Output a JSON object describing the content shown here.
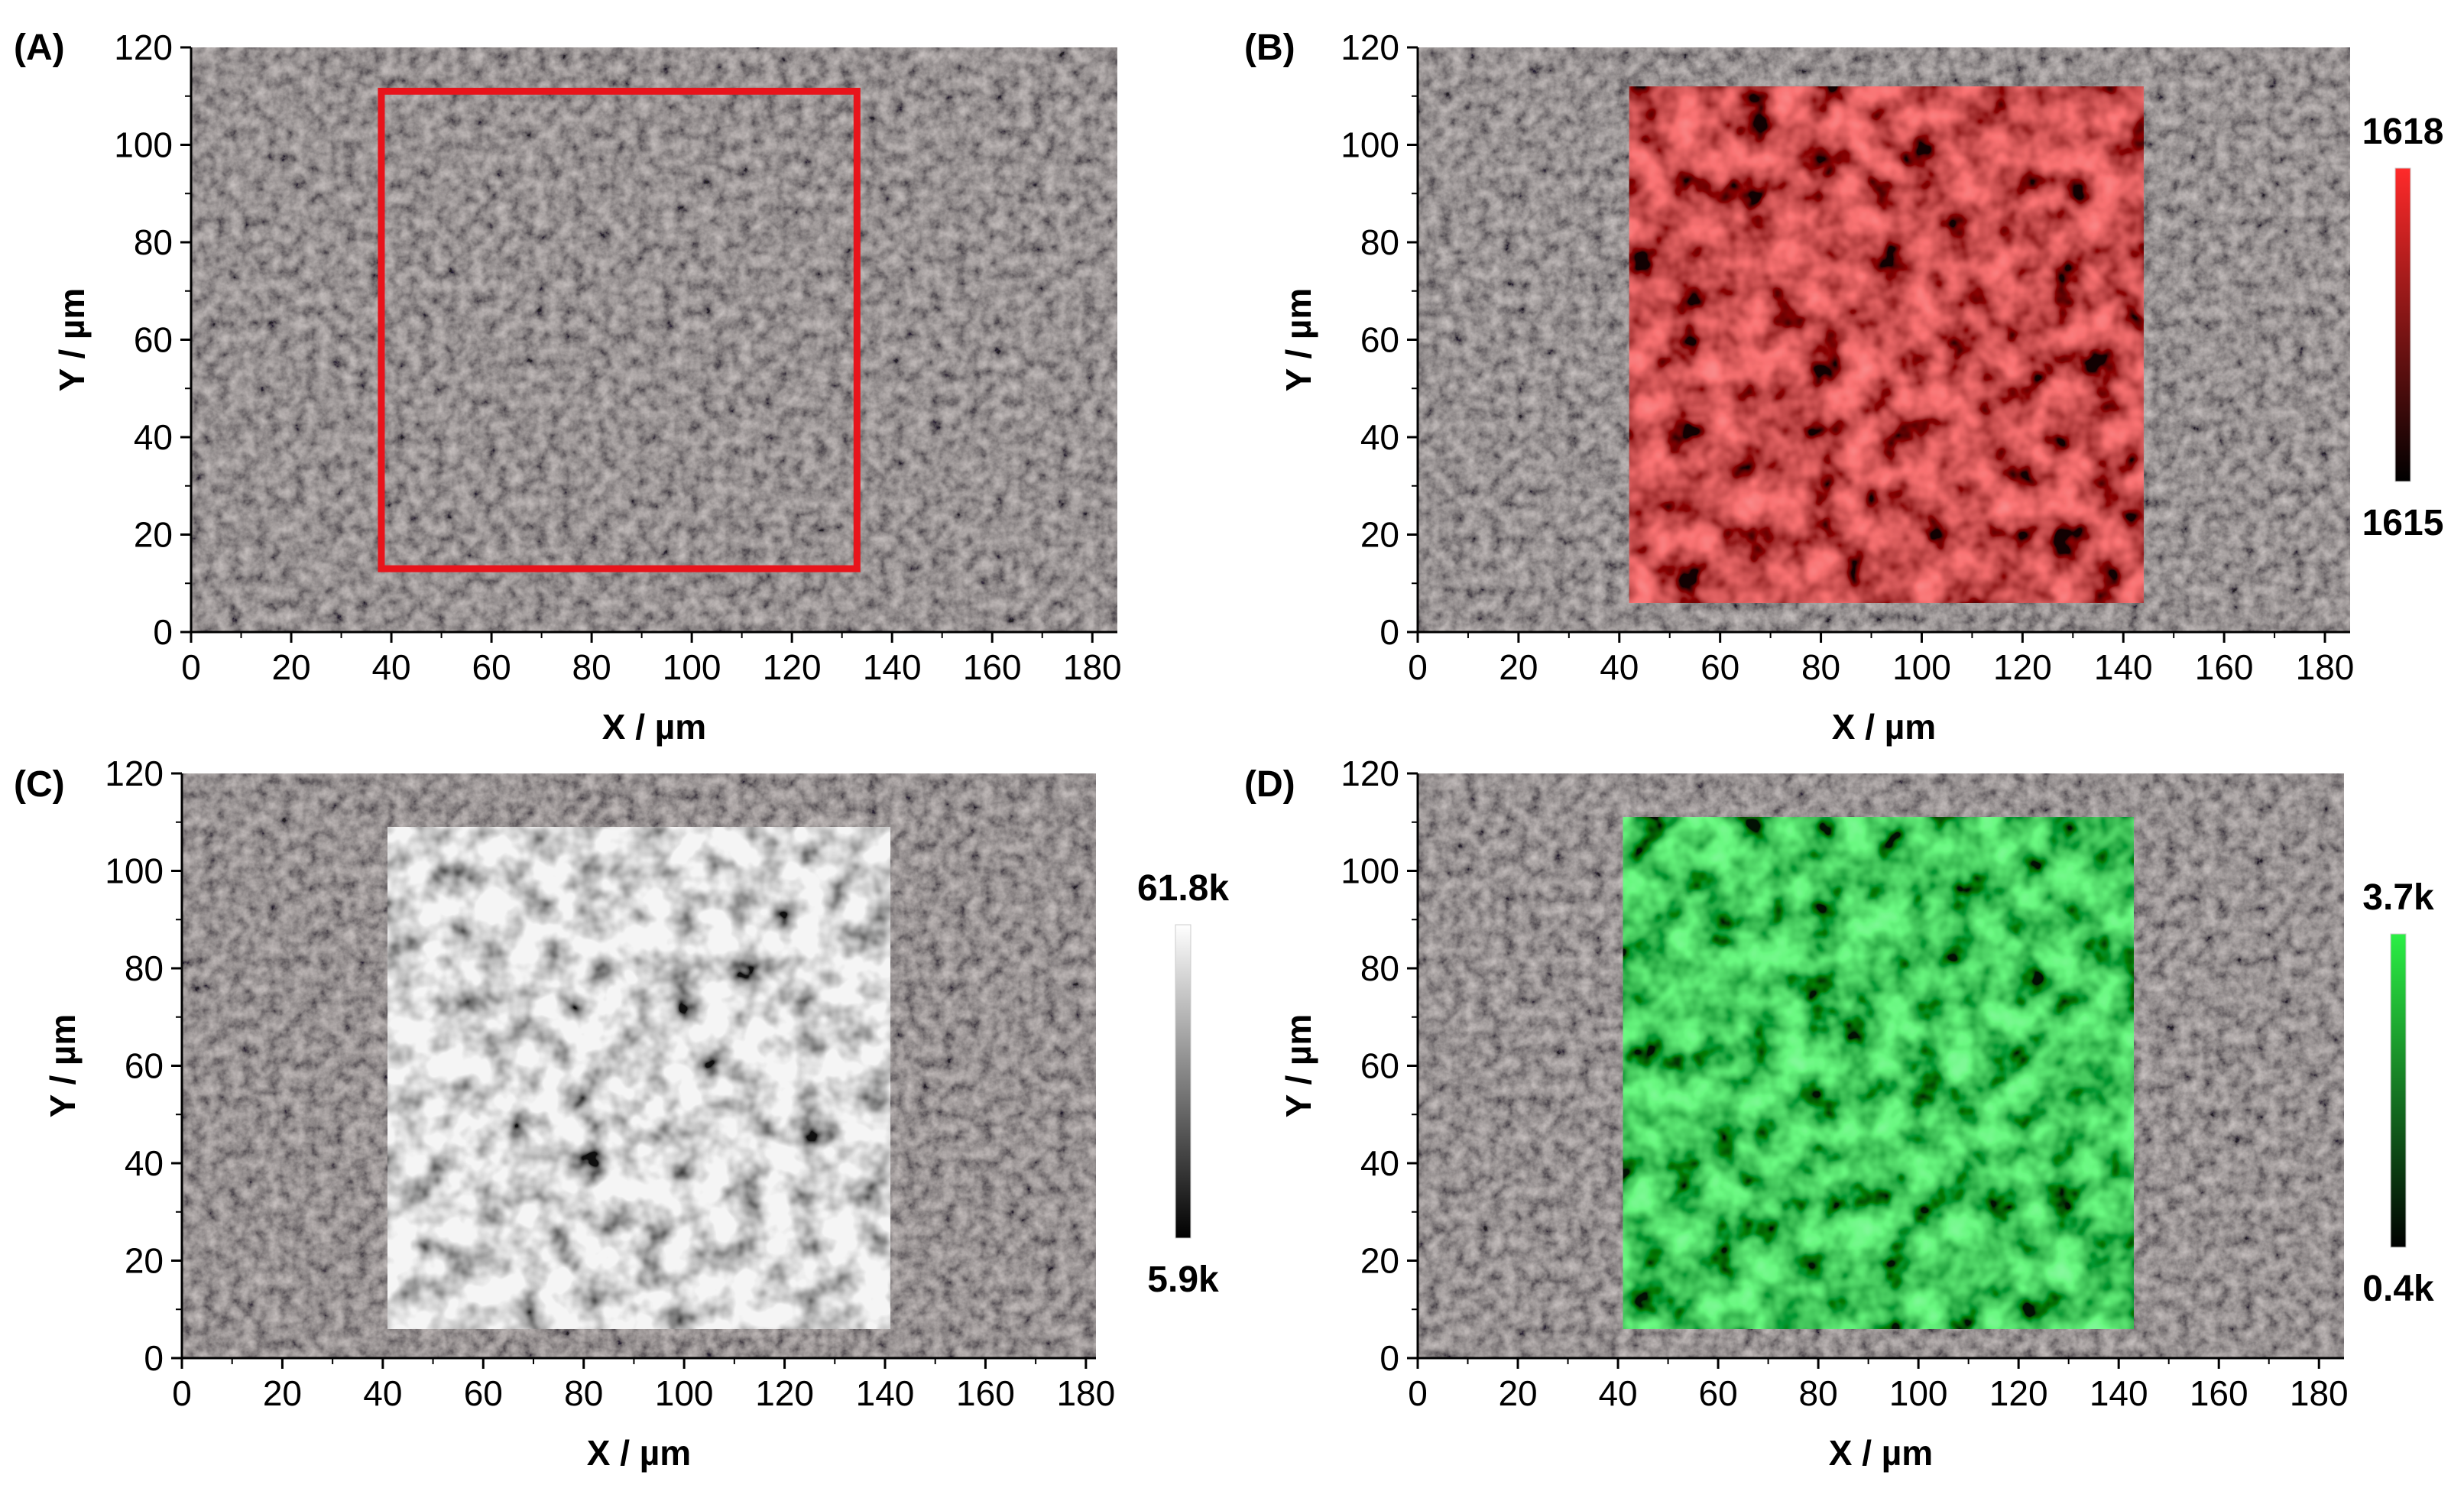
{
  "chart_data": [
    {
      "type": "heatmap",
      "panel_label": "(A)",
      "title": "",
      "xlabel": "X / µm",
      "ylabel": "Y / µm",
      "xlim": [
        0,
        185
      ],
      "ylim": [
        0,
        120
      ],
      "xticks": [
        0,
        20,
        40,
        60,
        80,
        100,
        120,
        140,
        160,
        180
      ],
      "yticks": [
        0,
        20,
        40,
        60,
        80,
        100,
        120
      ],
      "background": "optical microscope image",
      "region": {
        "x0": 38,
        "x1": 133,
        "y0": 13,
        "y1": 111,
        "display": "outline",
        "color": "#e8141b"
      },
      "colorbar": null
    },
    {
      "type": "heatmap",
      "panel_label": "(B)",
      "title": "",
      "xlabel": "X / µm",
      "ylabel": "Y / µm",
      "xlim": [
        0,
        185
      ],
      "ylim": [
        0,
        120
      ],
      "xticks": [
        0,
        20,
        40,
        60,
        80,
        100,
        120,
        140,
        160,
        180
      ],
      "yticks": [
        0,
        20,
        40,
        60,
        80,
        100,
        120
      ],
      "background": "optical microscope image",
      "region": {
        "x0": 42,
        "x1": 144,
        "y0": 6,
        "y1": 112,
        "display": "map"
      },
      "colorbar": {
        "min_label": "1615",
        "max_label": "1618",
        "low_color": "#000000",
        "high_color": "#ff2a2a"
      }
    },
    {
      "type": "heatmap",
      "panel_label": "(C)",
      "title": "",
      "xlabel": "X / µm",
      "ylabel": "Y / µm",
      "xlim": [
        0,
        182
      ],
      "ylim": [
        0,
        120
      ],
      "xticks": [
        0,
        20,
        40,
        60,
        80,
        100,
        120,
        140,
        160,
        180
      ],
      "yticks": [
        0,
        20,
        40,
        60,
        80,
        100,
        120
      ],
      "background": "optical microscope image",
      "region": {
        "x0": 41,
        "x1": 141,
        "y0": 6,
        "y1": 109,
        "display": "map"
      },
      "colorbar": {
        "min_label": "5.9k",
        "max_label": "61.8k",
        "low_color": "#000000",
        "high_color": "#ffffff"
      }
    },
    {
      "type": "heatmap",
      "panel_label": "(D)",
      "title": "",
      "xlabel": "X / µm",
      "ylabel": "Y / µm",
      "xlim": [
        0,
        185
      ],
      "ylim": [
        0,
        120
      ],
      "xticks": [
        0,
        20,
        40,
        60,
        80,
        100,
        120,
        140,
        160,
        180
      ],
      "yticks": [
        0,
        20,
        40,
        60,
        80,
        100,
        120
      ],
      "background": "optical microscope image",
      "region": {
        "x0": 41,
        "x1": 143,
        "y0": 6,
        "y1": 111,
        "display": "map"
      },
      "colorbar": {
        "min_label": "0.4k",
        "max_label": "3.7k",
        "low_color": "#000000",
        "high_color": "#2bef45"
      }
    }
  ]
}
